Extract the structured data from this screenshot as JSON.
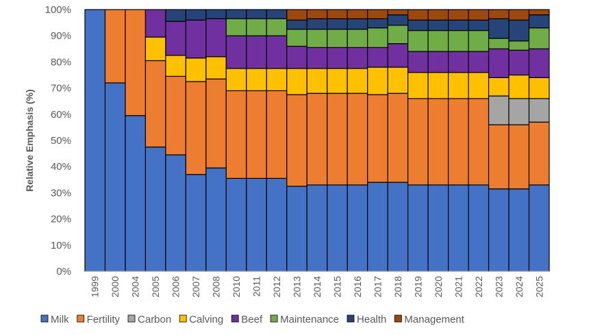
{
  "chart_data": {
    "type": "bar",
    "stacked": true,
    "title": "",
    "xlabel": "",
    "ylabel": "Relative Emphasis (%)",
    "ylim": [
      0,
      100
    ],
    "yticks": [
      "0%",
      "10%",
      "20%",
      "30%",
      "40%",
      "50%",
      "60%",
      "70%",
      "80%",
      "90%",
      "100%"
    ],
    "grid": false,
    "legend_position": "bottom",
    "categories": [
      "1999",
      "2000",
      "2004",
      "2005",
      "2006",
      "2007",
      "2008",
      "2010",
      "2011",
      "2012",
      "2013",
      "2014",
      "2015",
      "2016",
      "2017",
      "2018",
      "2019",
      "2020",
      "2021",
      "2022",
      "2023",
      "2024",
      "2025"
    ],
    "series": [
      {
        "name": "Milk",
        "color": "#4472C4",
        "values": [
          100,
          72,
          59.5,
          47.5,
          44.5,
          37,
          39.5,
          35.5,
          35.5,
          35.5,
          32.5,
          33,
          33,
          33,
          34,
          34,
          33,
          33,
          33,
          33,
          31.5,
          31.5,
          33
        ]
      },
      {
        "name": "Fertility",
        "color": "#ED7D31",
        "values": [
          0,
          28,
          40.5,
          33,
          30,
          35.5,
          34,
          33.5,
          33.5,
          33.5,
          35,
          35,
          35,
          35,
          33.5,
          34,
          33,
          33,
          33,
          33,
          24.5,
          24.5,
          24
        ]
      },
      {
        "name": "Carbon",
        "color": "#A5A5A5",
        "values": [
          0,
          0,
          0,
          0,
          0,
          0,
          0,
          0,
          0,
          0,
          0,
          0,
          0,
          0,
          0,
          0,
          0,
          0,
          0,
          0,
          11,
          10,
          9
        ]
      },
      {
        "name": "Calving",
        "color": "#FFC000",
        "values": [
          0,
          0,
          0,
          9,
          8,
          9,
          8.5,
          8.5,
          8.5,
          8.5,
          10,
          9.5,
          9.5,
          9.5,
          10.5,
          10,
          10,
          10,
          10,
          10,
          7,
          9,
          8
        ]
      },
      {
        "name": "Beef",
        "color": "#7030A0",
        "values": [
          0,
          0,
          0,
          10.5,
          13,
          14.5,
          14.5,
          12.5,
          12.5,
          12.5,
          8.5,
          8,
          8,
          8,
          7.5,
          9,
          8,
          8,
          8,
          8,
          11,
          9.5,
          11
        ]
      },
      {
        "name": "Maintenance",
        "color": "#70AD47",
        "values": [
          0,
          0,
          0,
          0,
          0,
          0,
          0,
          6.5,
          6.5,
          6.5,
          6.5,
          7,
          7,
          7,
          7.5,
          7,
          8,
          8,
          8,
          8,
          4,
          3.5,
          8
        ]
      },
      {
        "name": "Health",
        "color": "#264478",
        "values": [
          0,
          0,
          0,
          0,
          4.5,
          4,
          3.5,
          3.5,
          3.5,
          3.5,
          3.5,
          4,
          4,
          4,
          3.5,
          4,
          4,
          4,
          4,
          4,
          7.5,
          8,
          5
        ]
      },
      {
        "name": "Management",
        "color": "#9E480E",
        "values": [
          0,
          0,
          0,
          0,
          0,
          0,
          0,
          0,
          0,
          0,
          4,
          3.5,
          3.5,
          3.5,
          3.5,
          2,
          4,
          4,
          4,
          4,
          3.5,
          4,
          2
        ]
      }
    ]
  }
}
